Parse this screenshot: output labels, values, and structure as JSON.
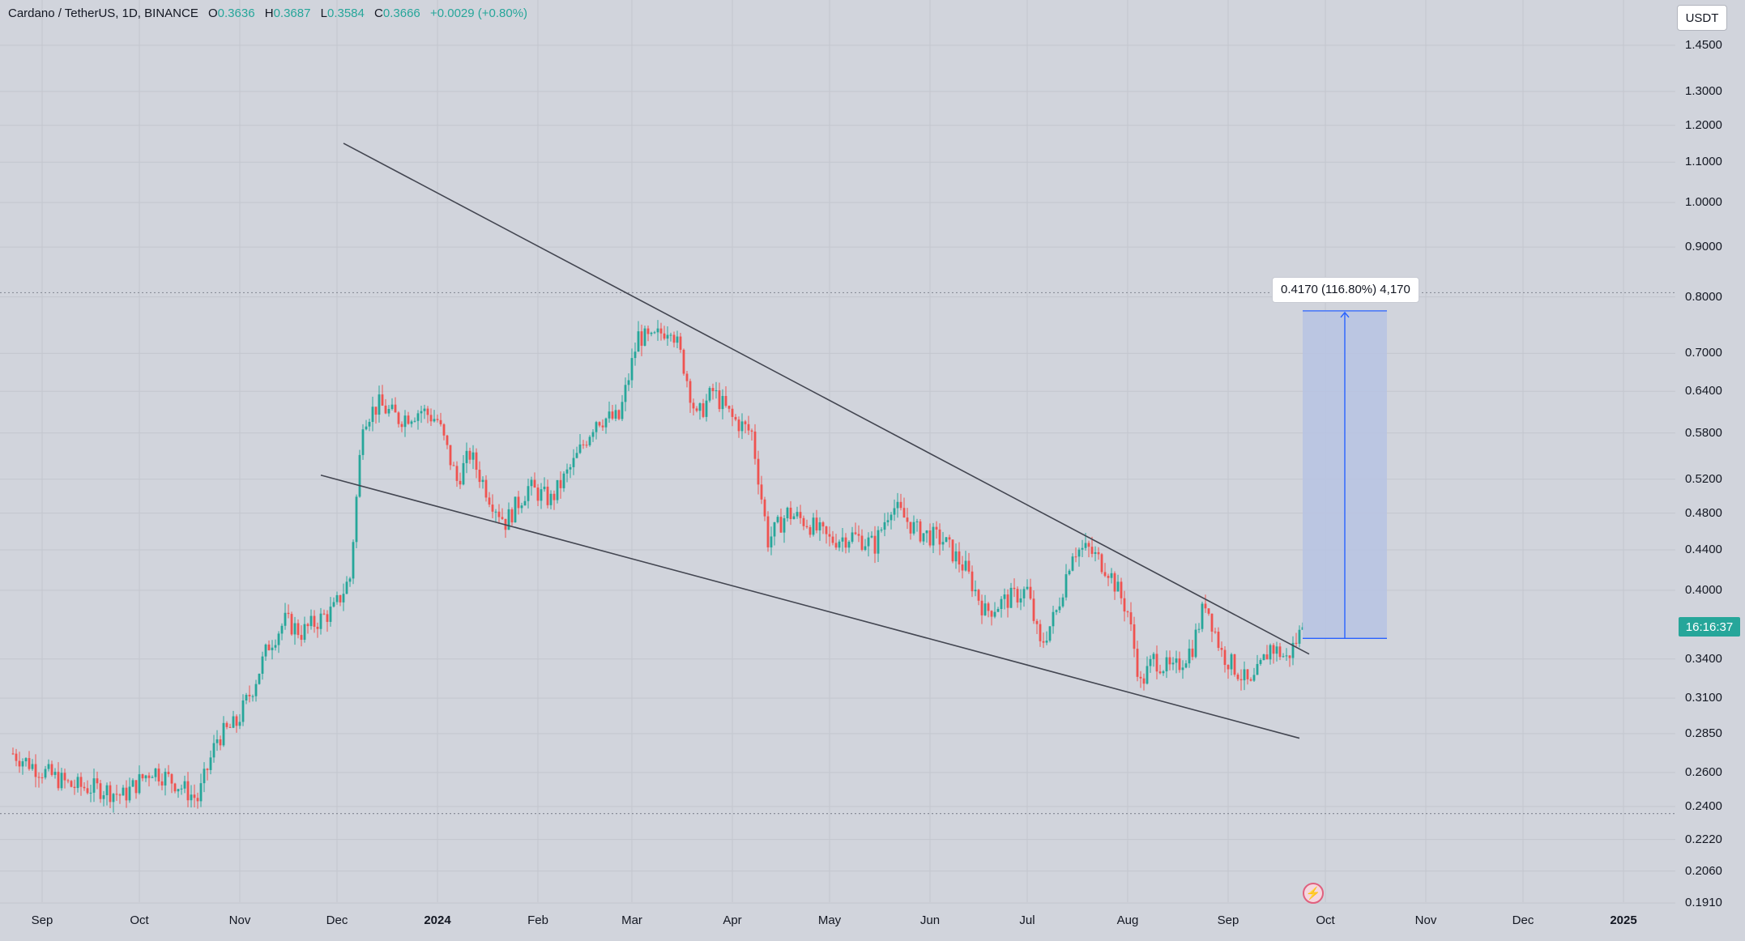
{
  "legend": {
    "symbol": "Cardano / TetherUS, 1D, BINANCE",
    "open_key": "O",
    "open": "0.3636",
    "high_key": "H",
    "high": "0.3687",
    "low_key": "L",
    "low": "0.3584",
    "close_key": "C",
    "close": "0.3666",
    "change": "+0.0029 (+0.80%)"
  },
  "currency_button": "USDT",
  "countdown": "16:16:37",
  "measure_label": "0.4170 (116.80%) 4,170",
  "colors": {
    "up": "#26a69a",
    "down": "#ef5350",
    "background": "#d1d4dc",
    "measure_fill": "#b7c3e3",
    "measure_line": "#2962ff"
  },
  "icons": {
    "alert": "lightning-icon"
  },
  "chart_data": {
    "type": "candlestick",
    "title": "Cardano / TetherUS, 1D, BINANCE",
    "y_scale": "log",
    "ylim": [
      0.191,
      1.5
    ],
    "xlim": [
      "2023-08-23",
      "2025-01-15"
    ],
    "grid": true,
    "y_ticks": [
      1.45,
      1.3,
      1.2,
      1.1,
      1.0,
      0.9,
      0.8,
      0.7,
      0.64,
      0.58,
      0.52,
      0.48,
      0.44,
      0.4,
      0.34,
      0.31,
      0.285,
      0.26,
      0.24,
      0.222,
      0.206,
      0.191
    ],
    "y_tick_labels": [
      "1.4500",
      "1.3000",
      "1.2000",
      "1.1000",
      "1.0000",
      "0.9000",
      "0.8000",
      "0.7000",
      "0.6400",
      "0.5800",
      "0.5200",
      "0.4800",
      "0.4400",
      "0.4000",
      "0.3400",
      "0.3100",
      "0.2850",
      "0.2600",
      "0.2400",
      "0.2220",
      "0.2060",
      "0.1910"
    ],
    "x_ticks": [
      {
        "date": "2023-09-01",
        "label": "Sep",
        "bold": false
      },
      {
        "date": "2023-10-01",
        "label": "Oct",
        "bold": false
      },
      {
        "date": "2023-11-01",
        "label": "Nov",
        "bold": false
      },
      {
        "date": "2023-12-01",
        "label": "Dec",
        "bold": false
      },
      {
        "date": "2024-01-01",
        "label": "2024",
        "bold": true
      },
      {
        "date": "2024-02-01",
        "label": "Feb",
        "bold": false
      },
      {
        "date": "2024-03-01",
        "label": "Mar",
        "bold": false
      },
      {
        "date": "2024-04-01",
        "label": "Apr",
        "bold": false
      },
      {
        "date": "2024-05-01",
        "label": "May",
        "bold": false
      },
      {
        "date": "2024-06-01",
        "label": "Jun",
        "bold": false
      },
      {
        "date": "2024-07-01",
        "label": "Jul",
        "bold": false
      },
      {
        "date": "2024-08-01",
        "label": "Aug",
        "bold": false
      },
      {
        "date": "2024-09-01",
        "label": "Sep",
        "bold": false
      },
      {
        "date": "2024-10-01",
        "label": "Oct",
        "bold": false
      },
      {
        "date": "2024-11-01",
        "label": "Nov",
        "bold": false
      },
      {
        "date": "2024-12-01",
        "label": "Dec",
        "bold": false
      },
      {
        "date": "2025-01-01",
        "label": "2025",
        "bold": true
      }
    ],
    "close_path": [
      [
        "2023-08-23",
        0.272
      ],
      [
        "2023-08-31",
        0.262
      ],
      [
        "2023-09-10",
        0.252
      ],
      [
        "2023-09-20",
        0.25
      ],
      [
        "2023-09-26",
        0.246
      ],
      [
        "2023-10-05",
        0.262
      ],
      [
        "2023-10-12",
        0.254
      ],
      [
        "2023-10-19",
        0.244
      ],
      [
        "2023-10-25",
        0.282
      ],
      [
        "2023-10-31",
        0.292
      ],
      [
        "2023-11-05",
        0.318
      ],
      [
        "2023-11-10",
        0.352
      ],
      [
        "2023-11-15",
        0.372
      ],
      [
        "2023-11-20",
        0.362
      ],
      [
        "2023-11-25",
        0.372
      ],
      [
        "2023-11-30",
        0.382
      ],
      [
        "2023-12-05",
        0.412
      ],
      [
        "2023-12-09",
        0.6
      ],
      [
        "2023-12-14",
        0.62
      ],
      [
        "2023-12-20",
        0.6
      ],
      [
        "2023-12-27",
        0.612
      ],
      [
        "2024-01-01",
        0.598
      ],
      [
        "2024-01-07",
        0.518
      ],
      [
        "2024-01-11",
        0.552
      ],
      [
        "2024-01-17",
        0.5
      ],
      [
        "2024-01-22",
        0.47
      ],
      [
        "2024-01-29",
        0.51
      ],
      [
        "2024-02-05",
        0.495
      ],
      [
        "2024-02-12",
        0.54
      ],
      [
        "2024-02-19",
        0.6
      ],
      [
        "2024-02-26",
        0.6
      ],
      [
        "2024-03-03",
        0.73
      ],
      [
        "2024-03-07",
        0.72
      ],
      [
        "2024-03-13",
        0.75
      ],
      [
        "2024-03-17",
        0.68
      ],
      [
        "2024-03-21",
        0.6
      ],
      [
        "2024-03-26",
        0.64
      ],
      [
        "2024-04-01",
        0.6
      ],
      [
        "2024-04-07",
        0.58
      ],
      [
        "2024-04-12",
        0.45
      ],
      [
        "2024-04-18",
        0.48
      ],
      [
        "2024-04-24",
        0.47
      ],
      [
        "2024-05-01",
        0.45
      ],
      [
        "2024-05-08",
        0.455
      ],
      [
        "2024-05-15",
        0.445
      ],
      [
        "2024-05-20",
        0.49
      ],
      [
        "2024-05-28",
        0.46
      ],
      [
        "2024-06-05",
        0.45
      ],
      [
        "2024-06-12",
        0.42
      ],
      [
        "2024-06-18",
        0.38
      ],
      [
        "2024-06-24",
        0.39
      ],
      [
        "2024-07-01",
        0.4
      ],
      [
        "2024-07-05",
        0.35
      ],
      [
        "2024-07-10",
        0.38
      ],
      [
        "2024-07-15",
        0.44
      ],
      [
        "2024-07-20",
        0.44
      ],
      [
        "2024-07-26",
        0.42
      ],
      [
        "2024-08-01",
        0.38
      ],
      [
        "2024-08-05",
        0.32
      ],
      [
        "2024-08-09",
        0.34
      ],
      [
        "2024-08-15",
        0.33
      ],
      [
        "2024-08-21",
        0.35
      ],
      [
        "2024-08-25",
        0.39
      ],
      [
        "2024-08-30",
        0.345
      ],
      [
        "2024-09-04",
        0.33
      ],
      [
        "2024-09-08",
        0.318
      ],
      [
        "2024-09-14",
        0.35
      ],
      [
        "2024-09-17",
        0.345
      ],
      [
        "2024-09-19",
        0.34
      ],
      [
        "2024-09-22",
        0.355
      ],
      [
        "2024-09-24",
        0.3666
      ]
    ],
    "trendlines": [
      {
        "name": "upper-resistance",
        "from": [
          "2023-12-03",
          1.15
        ],
        "to": [
          "2024-09-26",
          0.344
        ]
      },
      {
        "name": "lower-support",
        "from": [
          "2023-11-26",
          0.525
        ],
        "to": [
          "2024-09-23",
          0.282
        ]
      }
    ],
    "horizontal_levels": [
      0.808,
      0.236
    ],
    "measure": {
      "from_date": "2024-09-24",
      "to_date": "2024-10-20",
      "base_price": 0.357,
      "target_price": 0.774,
      "change": 0.417,
      "change_percent": 116.8,
      "ticks": 4170
    },
    "last_price": 0.3666
  }
}
